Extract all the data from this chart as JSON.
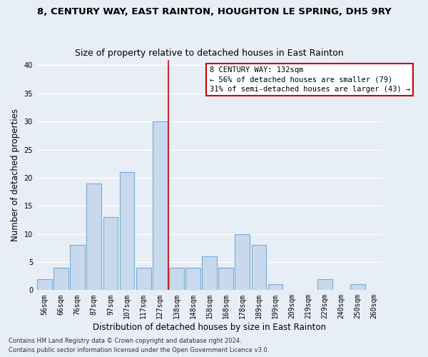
{
  "title": "8, CENTURY WAY, EAST RAINTON, HOUGHTON LE SPRING, DH5 9RY",
  "subtitle": "Size of property relative to detached houses in East Rainton",
  "xlabel": "Distribution of detached houses by size in East Rainton",
  "ylabel": "Number of detached properties",
  "bar_color": "#c8d9ed",
  "bar_edge_color": "#7aaad0",
  "background_color": "#e8eef6",
  "grid_color": "#ffffff",
  "bin_labels": [
    "56sqm",
    "66sqm",
    "76sqm",
    "87sqm",
    "97sqm",
    "107sqm",
    "117sqm",
    "127sqm",
    "138sqm",
    "148sqm",
    "158sqm",
    "168sqm",
    "178sqm",
    "189sqm",
    "199sqm",
    "209sqm",
    "219sqm",
    "229sqm",
    "240sqm",
    "250sqm",
    "260sqm"
  ],
  "bar_values": [
    2,
    4,
    8,
    19,
    13,
    21,
    4,
    30,
    4,
    4,
    6,
    4,
    10,
    8,
    1,
    0,
    0,
    2,
    0,
    1,
    0
  ],
  "ylim": [
    0,
    41
  ],
  "yticks": [
    0,
    5,
    10,
    15,
    20,
    25,
    30,
    35,
    40
  ],
  "vline_x": 7.5,
  "vline_color": "#cc0000",
  "annotation_text": "8 CENTURY WAY: 132sqm\n← 56% of detached houses are smaller (79)\n31% of semi-detached houses are larger (43) →",
  "annotation_box_color": "#ffffff",
  "annotation_box_edge": "#cc0000",
  "footer_line1": "Contains HM Land Registry data © Crown copyright and database right 2024.",
  "footer_line2": "Contains public sector information licensed under the Open Government Licence v3.0.",
  "title_fontsize": 9.5,
  "subtitle_fontsize": 9,
  "tick_fontsize": 7,
  "ylabel_fontsize": 8.5,
  "xlabel_fontsize": 8.5,
  "annotation_fontsize": 7.5,
  "footer_fontsize": 6
}
